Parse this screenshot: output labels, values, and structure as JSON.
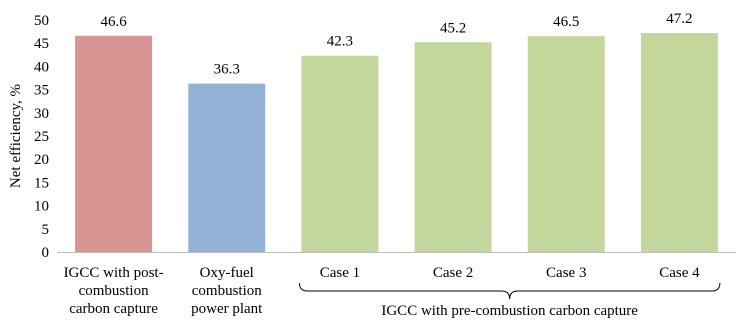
{
  "chart_data": {
    "type": "bar",
    "ylabel": "Net efficiency, %",
    "ylim": [
      0,
      50
    ],
    "yticks": [
      0,
      5,
      10,
      15,
      20,
      25,
      30,
      35,
      40,
      45,
      50
    ],
    "grid": false,
    "categories": [
      [
        "IGCC with post-",
        "combustion",
        "carbon capture"
      ],
      [
        "Oxy-fuel",
        "combustion",
        "power plant"
      ],
      [
        "Case 1"
      ],
      [
        "Case 2"
      ],
      [
        "Case 3"
      ],
      [
        "Case 4"
      ]
    ],
    "values": [
      46.6,
      36.3,
      42.3,
      45.2,
      46.5,
      47.2
    ],
    "value_labels": [
      "46.6",
      "36.3",
      "42.3",
      "45.2",
      "46.5",
      "47.2"
    ],
    "bar_colors": [
      "#d99594",
      "#95b3d7",
      "#c3d69b",
      "#c3d69b",
      "#c3d69b",
      "#c3d69b"
    ],
    "group": {
      "label": "IGCC with pre-combustion carbon capture",
      "first_index": 2,
      "last_index": 5
    }
  }
}
